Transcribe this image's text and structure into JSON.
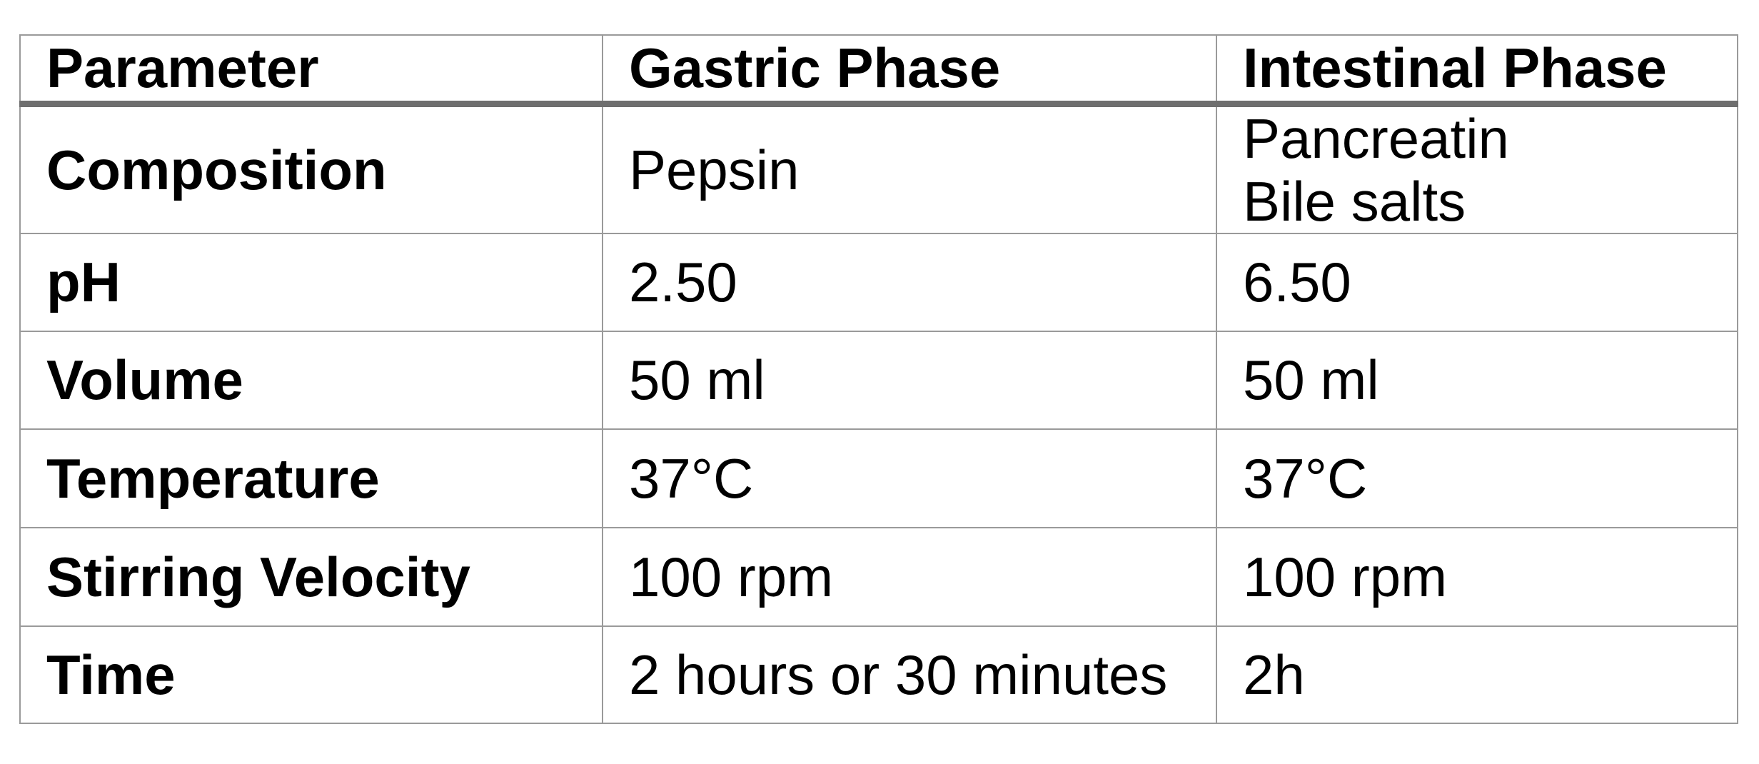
{
  "table": {
    "headers": [
      {
        "label": "Parameter"
      },
      {
        "label": "Gastric Phase"
      },
      {
        "label": "Intestinal Phase"
      }
    ],
    "rows": [
      {
        "cells": [
          [
            "Composition"
          ],
          [
            "Pepsin"
          ],
          [
            "Pancreatin",
            "Bile salts"
          ]
        ]
      },
      {
        "cells": [
          [
            "pH"
          ],
          [
            "2.50"
          ],
          [
            "6.50"
          ]
        ]
      },
      {
        "cells": [
          [
            "Volume"
          ],
          [
            "50 ml"
          ],
          [
            "50 ml"
          ]
        ]
      },
      {
        "cells": [
          [
            "Temperature"
          ],
          [
            "37°C"
          ],
          [
            "37°C"
          ]
        ]
      },
      {
        "cells": [
          [
            "Stirring Velocity"
          ],
          [
            "100 rpm"
          ],
          [
            "100 rpm"
          ]
        ]
      },
      {
        "cells": [
          [
            "Time"
          ],
          [
            "2 hours or 30 minutes"
          ],
          [
            "2h"
          ]
        ]
      }
    ],
    "colors": {
      "thin_border": "#9a9a9a",
      "thick_header_rule": "#6e6e6e",
      "text": "#000000",
      "background": "#ffffff"
    }
  }
}
